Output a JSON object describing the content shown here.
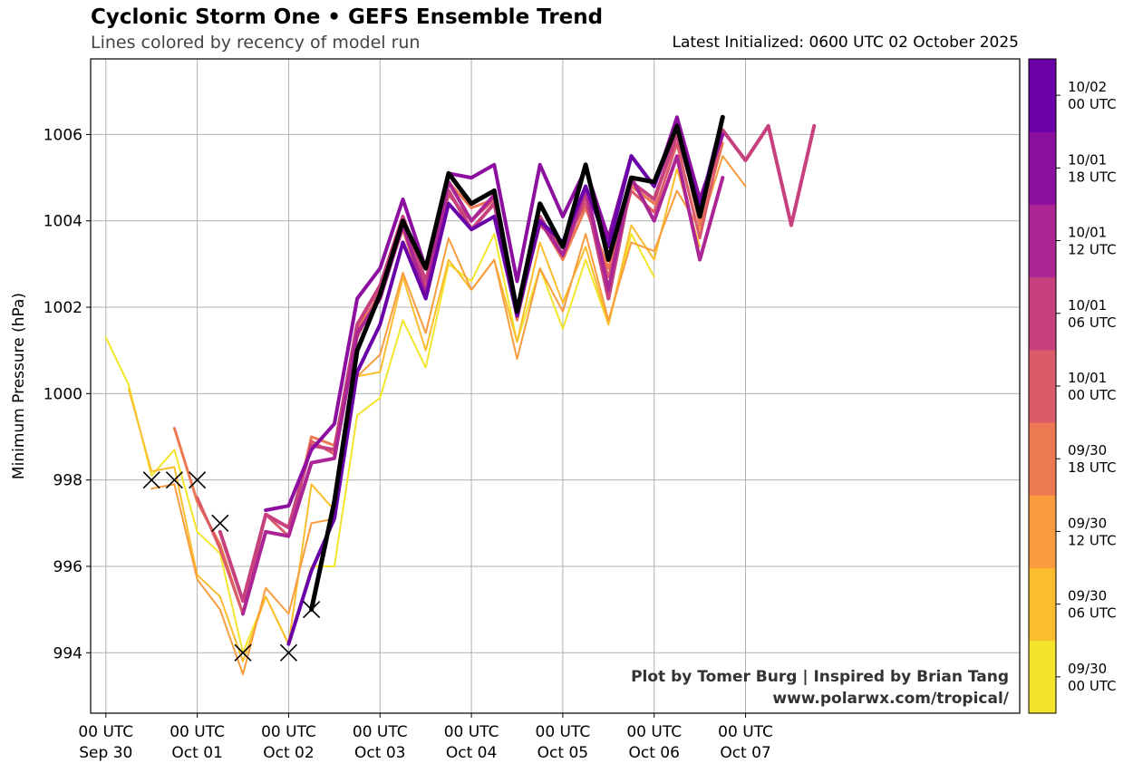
{
  "header": {
    "title": "Cyclonic Storm One • GEFS Ensemble Trend",
    "subtitle": "Lines colored by recency of model run",
    "latest": "Latest Initialized: 0600 UTC 02 October 2025"
  },
  "credit": {
    "line1": "Plot by Tomer Burg | Inspired by Brian Tang",
    "line2": "www.polarwx.com/tropical/"
  },
  "colors": {
    "grid": "#b0b0b0",
    "latest_run": "#000000",
    "marker": "#000000"
  },
  "chart_data": {
    "type": "line",
    "ylabel": "Minimum Pressure (hPa)",
    "xlabel": "",
    "ylim": [
      992.6,
      1007.75
    ],
    "xlim_hours": [
      -4,
      240
    ],
    "grid": true,
    "yticks": [
      994,
      996,
      998,
      1000,
      1002,
      1004,
      1006
    ],
    "xticks": [
      {
        "h": 0,
        "line1": "00 UTC",
        "line2": "Sep 30"
      },
      {
        "h": 24,
        "line1": "00 UTC",
        "line2": "Oct 01"
      },
      {
        "h": 48,
        "line1": "00 UTC",
        "line2": "Oct 02"
      },
      {
        "h": 72,
        "line1": "00 UTC",
        "line2": "Oct 03"
      },
      {
        "h": 96,
        "line1": "00 UTC",
        "line2": "Oct 04"
      },
      {
        "h": 120,
        "line1": "00 UTC",
        "line2": "Oct 05"
      },
      {
        "h": 144,
        "line1": "00 UTC",
        "line2": "Oct 06"
      },
      {
        "h": 168,
        "line1": "00 UTC",
        "line2": "Oct 07"
      }
    ],
    "colorbar": [
      {
        "line1": "09/30",
        "line2": "00 UTC",
        "color": "#f3e52c"
      },
      {
        "line1": "09/30",
        "line2": "06 UTC",
        "color": "#fbbd2e"
      },
      {
        "line1": "09/30",
        "line2": "12 UTC",
        "color": "#f89c3e"
      },
      {
        "line1": "09/30",
        "line2": "18 UTC",
        "color": "#ed7953"
      },
      {
        "line1": "10/01",
        "line2": "00 UTC",
        "color": "#db5c68"
      },
      {
        "line1": "10/01",
        "line2": "06 UTC",
        "color": "#c6417d"
      },
      {
        "line1": "10/01",
        "line2": "12 UTC",
        "color": "#ab2694"
      },
      {
        "line1": "10/01",
        "line2": "18 UTC",
        "color": "#8d0fa0"
      },
      {
        "line1": "10/02",
        "line2": "00 UTC",
        "color": "#6a00a8"
      }
    ],
    "observed_marks": {
      "x_hours": [
        12,
        18,
        24,
        30,
        36,
        48,
        54
      ],
      "y": [
        998.0,
        998.0,
        998.0,
        997.0,
        994.0,
        994.0,
        995.0
      ]
    },
    "series": [
      {
        "name": "09/30 00 UTC",
        "color": "#f3e52c",
        "start_hour": 0,
        "values": [
          1001.3,
          1000.2,
          998.1,
          998.7,
          996.8,
          996.3,
          994.0,
          995.3,
          994.2,
          996.0,
          996.0,
          999.5,
          999.9,
          1001.7,
          1000.6,
          1003.0,
          1002.6,
          1003.7,
          1001.2,
          1002.9,
          1001.5,
          1003.1,
          1001.6,
          1003.7,
          1002.7
        ]
      },
      {
        "name": "09/30 06 UTC",
        "color": "#fbbd2e",
        "start_hour": 6,
        "values": [
          1000.1,
          998.2,
          998.3,
          995.8,
          995.3,
          993.8,
          995.3,
          994.2,
          997.9,
          997.3,
          1000.4,
          1000.5,
          1002.7,
          1001.0,
          1003.1,
          1002.4,
          1003.1,
          1001.2,
          1003.5,
          1002.1,
          1003.4,
          1001.6,
          1003.9,
          1003.1,
          1005.2,
          1003.4
        ]
      },
      {
        "name": "09/30 12 UTC",
        "color": "#f89c3e",
        "start_hour": 12,
        "values": [
          997.8,
          997.9,
          995.7,
          995.0,
          993.5,
          995.5,
          994.9,
          997.0,
          997.1,
          1000.4,
          1000.9,
          1002.8,
          1001.4,
          1003.6,
          1002.4,
          1003.1,
          1000.8,
          1002.9,
          1001.9,
          1003.7,
          1001.7,
          1003.5,
          1003.3,
          1004.7,
          1003.8,
          1005.5,
          1004.8
        ]
      },
      {
        "name": "09/30 18 UTC",
        "color": "#ed7953",
        "start_hour": 18,
        "values": [
          999.2,
          997.5,
          996.5,
          994.9,
          996.8,
          996.7,
          999.0,
          998.8,
          1001.5,
          1002.3,
          1003.8,
          1002.2,
          1004.9,
          1004.3,
          1004.5,
          1001.7,
          1004.0,
          1003.1,
          1004.3,
          1002.9,
          1004.8,
          1004.4,
          1006.2,
          1003.9,
          1005.8
        ]
      },
      {
        "name": "10/01 00 UTC",
        "color": "#db5c68",
        "start_hour": 24,
        "values": [
          997.6,
          996.4,
          994.9,
          997.2,
          996.7,
          998.9,
          998.6,
          1001.3,
          1002.4,
          1004.0,
          1002.5,
          1004.6,
          1004.0,
          1004.5,
          1001.8,
          1003.9,
          1003.4,
          1004.4,
          1002.7,
          1004.7,
          1004.2,
          1005.8,
          1003.6,
          1006.0
        ]
      },
      {
        "name": "10/01 06 UTC",
        "color": "#c6417d",
        "start_hour": 30,
        "values": [
          996.8,
          995.2,
          997.2,
          996.9,
          998.8,
          998.7,
          1001.6,
          1002.5,
          1004.1,
          1002.6,
          1004.7,
          1003.8,
          1004.4,
          1001.9,
          1004.1,
          1003.2,
          1004.6,
          1002.2,
          1004.9,
          1004.5,
          1006.0,
          1004.2,
          1006.1,
          1005.4,
          1006.2,
          1003.9,
          1006.2
        ]
      },
      {
        "name": "10/01 12 UTC",
        "color": "#ab2694",
        "start_hour": 36,
        "values": [
          994.9,
          996.8,
          996.7,
          998.4,
          998.5,
          1001.4,
          1002.2,
          1003.9,
          1002.3,
          1004.9,
          1004.0,
          1004.6,
          1001.8,
          1004.0,
          1003.2,
          1004.8,
          1002.4,
          1005.0,
          1004.0,
          1005.5,
          1003.1,
          1005.0
        ]
      },
      {
        "name": "10/01 18 UTC",
        "color": "#8d0fa0",
        "start_hour": 42,
        "values": [
          997.3,
          997.4,
          998.7,
          999.3,
          1002.2,
          1002.9,
          1004.5,
          1002.9,
          1005.1,
          1005.0,
          1005.3,
          1002.6,
          1005.3,
          1004.1,
          1005.2,
          1003.6,
          1005.5,
          1004.8,
          1006.4,
          1004.5,
          1006.0
        ]
      },
      {
        "name": "10/02 00 UTC",
        "color": "#6a00a8",
        "start_hour": 48,
        "values": [
          994.2,
          995.9,
          997.1,
          1000.5,
          1001.6,
          1003.5,
          1002.2,
          1004.4,
          1003.8,
          1004.1,
          1001.8,
          1004.0,
          1003.5,
          1004.8,
          1003.4,
          1005.5,
          1004.8,
          1006.2,
          1004.3,
          1006.4
        ]
      },
      {
        "name": "10/02 06 UTC",
        "color": "#000000",
        "start_hour": 54,
        "highlight": true,
        "values": [
          995.0,
          997.5,
          1001.0,
          1002.3,
          1004.0,
          1002.9,
          1005.1,
          1004.4,
          1004.7,
          1001.9,
          1004.4,
          1003.4,
          1005.3,
          1003.1,
          1005.0,
          1004.9,
          1006.2,
          1004.1,
          1006.4
        ]
      }
    ]
  }
}
